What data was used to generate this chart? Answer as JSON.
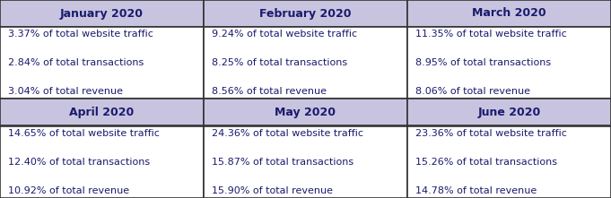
{
  "months": [
    "January 2020",
    "February 2020",
    "March 2020",
    "April 2020",
    "May 2020",
    "June 2020"
  ],
  "data": [
    [
      "3.37% of total website traffic",
      "2.84% of total transactions",
      "3.04% of total revenue"
    ],
    [
      "9.24% of total website traffic",
      "8.25% of total transactions",
      "8.56% of total revenue"
    ],
    [
      "11.35% of total website traffic",
      "8.95% of total transactions",
      "8.06% of total revenue"
    ],
    [
      "14.65% of total website traffic",
      "12.40% of total transactions",
      "10.92% of total revenue"
    ],
    [
      "24.36% of total website traffic",
      "15.87% of total transactions",
      "15.90% of total revenue"
    ],
    [
      "23.36% of total website traffic",
      "15.26% of total transactions",
      "14.78% of total revenue"
    ]
  ],
  "header_bg": "#c8c4e0",
  "cell_bg": "#ffffff",
  "border_color": "#333333",
  "text_color": "#1a1a6e",
  "header_fontsize": 9.0,
  "cell_fontsize": 8.0,
  "fig_width": 6.81,
  "fig_height": 2.21,
  "dpi": 100
}
